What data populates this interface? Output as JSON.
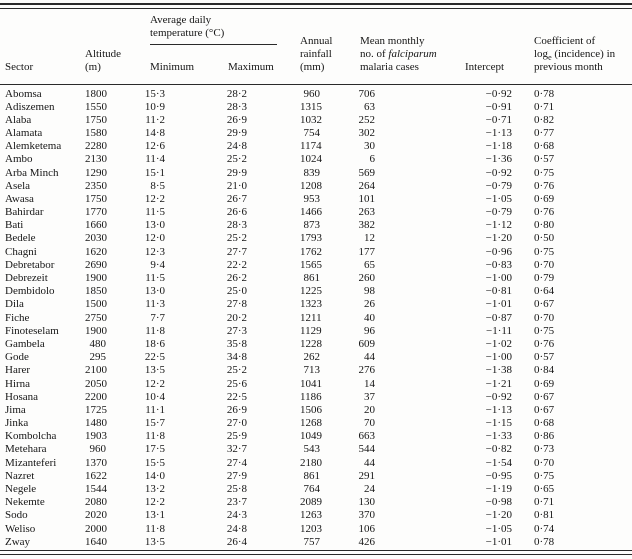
{
  "colors": {
    "background": "#fdfdfc",
    "text": "#161616",
    "rule": "#2a2a2a"
  },
  "table": {
    "col_keys": [
      "sector",
      "altitude",
      "min-temp",
      "max-temp",
      "rainfall",
      "cases",
      "intercept",
      "coefficient"
    ],
    "headers": {
      "sector": "Sector",
      "altitude_line1": "Altitude",
      "altitude_line2": "(m)",
      "temp_group_line1": "Average daily",
      "temp_group_line2": "temperature (°C)",
      "min": "Minimum",
      "max": "Maximum",
      "rainfall_line1": "Annual",
      "rainfall_line2": "rainfall",
      "rainfall_line3": "(mm)",
      "cases_line1": "Mean monthly",
      "cases_line2_prefix": "no. of ",
      "cases_line2_italic": "falciparum",
      "cases_line3": "malaria cases",
      "intercept": "Intercept",
      "coef_line1": "Coefficient of",
      "coef_line2_prefix": "log",
      "coef_line2_sub": "e",
      "coef_line2_suffix": " (incidence) in",
      "coef_line3": "previous month"
    },
    "rows": [
      [
        "Abomsa",
        "1800",
        "15·3",
        "28·2",
        "960",
        "706",
        "−0·92",
        "0·78"
      ],
      [
        "Adiszemen",
        "1550",
        "10·9",
        "28·3",
        "1315",
        "63",
        "−0·91",
        "0·71"
      ],
      [
        "Alaba",
        "1750",
        "11·2",
        "26·9",
        "1032",
        "252",
        "−0·71",
        "0·82"
      ],
      [
        "Alamata",
        "1580",
        "14·8",
        "29·9",
        "754",
        "302",
        "−1·13",
        "0·77"
      ],
      [
        "Alemketema",
        "2280",
        "12·6",
        "24·8",
        "1174",
        "30",
        "−1·18",
        "0·68"
      ],
      [
        "Ambo",
        "2130",
        "11·4",
        "25·2",
        "1024",
        "6",
        "−1·36",
        "0·57"
      ],
      [
        "Arba Minch",
        "1290",
        "15·1",
        "29·9",
        "839",
        "569",
        "−0·92",
        "0·75"
      ],
      [
        "Asela",
        "2350",
        "8·5",
        "21·0",
        "1208",
        "264",
        "−0·79",
        "0·76"
      ],
      [
        "Awasa",
        "1750",
        "12·2",
        "26·7",
        "953",
        "101",
        "−1·05",
        "0·69"
      ],
      [
        "Bahirdar",
        "1770",
        "11·5",
        "26·6",
        "1466",
        "263",
        "−0·79",
        "0·76"
      ],
      [
        "Bati",
        "1660",
        "13·0",
        "28·3",
        "873",
        "382",
        "−1·12",
        "0·80"
      ],
      [
        "Bedele",
        "2030",
        "12·0",
        "25·2",
        "1793",
        "12",
        "−1·20",
        "0·50"
      ],
      [
        "Chagni",
        "1620",
        "12·3",
        "27·7",
        "1762",
        "177",
        "−0·96",
        "0·75"
      ],
      [
        "Debretabor",
        "2690",
        "9·4",
        "22·2",
        "1565",
        "65",
        "−0·83",
        "0·70"
      ],
      [
        "Debrezeit",
        "1900",
        "11·5",
        "26·2",
        "861",
        "260",
        "−1·00",
        "0·79"
      ],
      [
        "Dembidolo",
        "1850",
        "13·0",
        "25·0",
        "1225",
        "98",
        "−0·81",
        "0·64"
      ],
      [
        "Dila",
        "1500",
        "11·3",
        "27·8",
        "1323",
        "26",
        "−1·01",
        "0·67"
      ],
      [
        "Fiche",
        "2750",
        "7·7",
        "20·2",
        "1211",
        "40",
        "−0·87",
        "0·70"
      ],
      [
        "Finoteselam",
        "1900",
        "11·8",
        "27·3",
        "1129",
        "96",
        "−1·11",
        "0·75"
      ],
      [
        "Gambela",
        "480",
        "18·6",
        "35·8",
        "1228",
        "609",
        "−1·02",
        "0·76"
      ],
      [
        "Gode",
        "295",
        "22·5",
        "34·8",
        "262",
        "44",
        "−1·00",
        "0·57"
      ],
      [
        "Harer",
        "2100",
        "13·5",
        "25·2",
        "713",
        "276",
        "−1·38",
        "0·84"
      ],
      [
        "Hirna",
        "2050",
        "12·2",
        "25·6",
        "1041",
        "14",
        "−1·21",
        "0·69"
      ],
      [
        "Hosana",
        "2200",
        "10·4",
        "22·5",
        "1186",
        "37",
        "−0·92",
        "0·67"
      ],
      [
        "Jima",
        "1725",
        "11·1",
        "26·9",
        "1506",
        "20",
        "−1·13",
        "0·67"
      ],
      [
        "Jinka",
        "1480",
        "15·7",
        "27·0",
        "1268",
        "70",
        "−1·15",
        "0·68"
      ],
      [
        "Kombolcha",
        "1903",
        "11·8",
        "25·9",
        "1049",
        "663",
        "−1·33",
        "0·86"
      ],
      [
        "Metehara",
        "960",
        "17·5",
        "32·7",
        "543",
        "544",
        "−0·82",
        "0·73"
      ],
      [
        "Mizanteferi",
        "1370",
        "15·5",
        "27·4",
        "2180",
        "44",
        "−1·54",
        "0·70"
      ],
      [
        "Nazret",
        "1622",
        "14·0",
        "27·9",
        "861",
        "291",
        "−0·95",
        "0·75"
      ],
      [
        "Negele",
        "1544",
        "13·2",
        "25·8",
        "764",
        "24",
        "−1·19",
        "0·65"
      ],
      [
        "Nekemte",
        "2080",
        "12·2",
        "23·7",
        "2089",
        "130",
        "−0·98",
        "0·71"
      ],
      [
        "Sodo",
        "2020",
        "13·1",
        "24·3",
        "1263",
        "370",
        "−1·20",
        "0·81"
      ],
      [
        "Weliso",
        "2000",
        "11·8",
        "24·8",
        "1203",
        "106",
        "−1·05",
        "0·74"
      ],
      [
        "Zway",
        "1640",
        "13·5",
        "26·4",
        "757",
        "426",
        "−1·01",
        "0·78"
      ]
    ]
  }
}
